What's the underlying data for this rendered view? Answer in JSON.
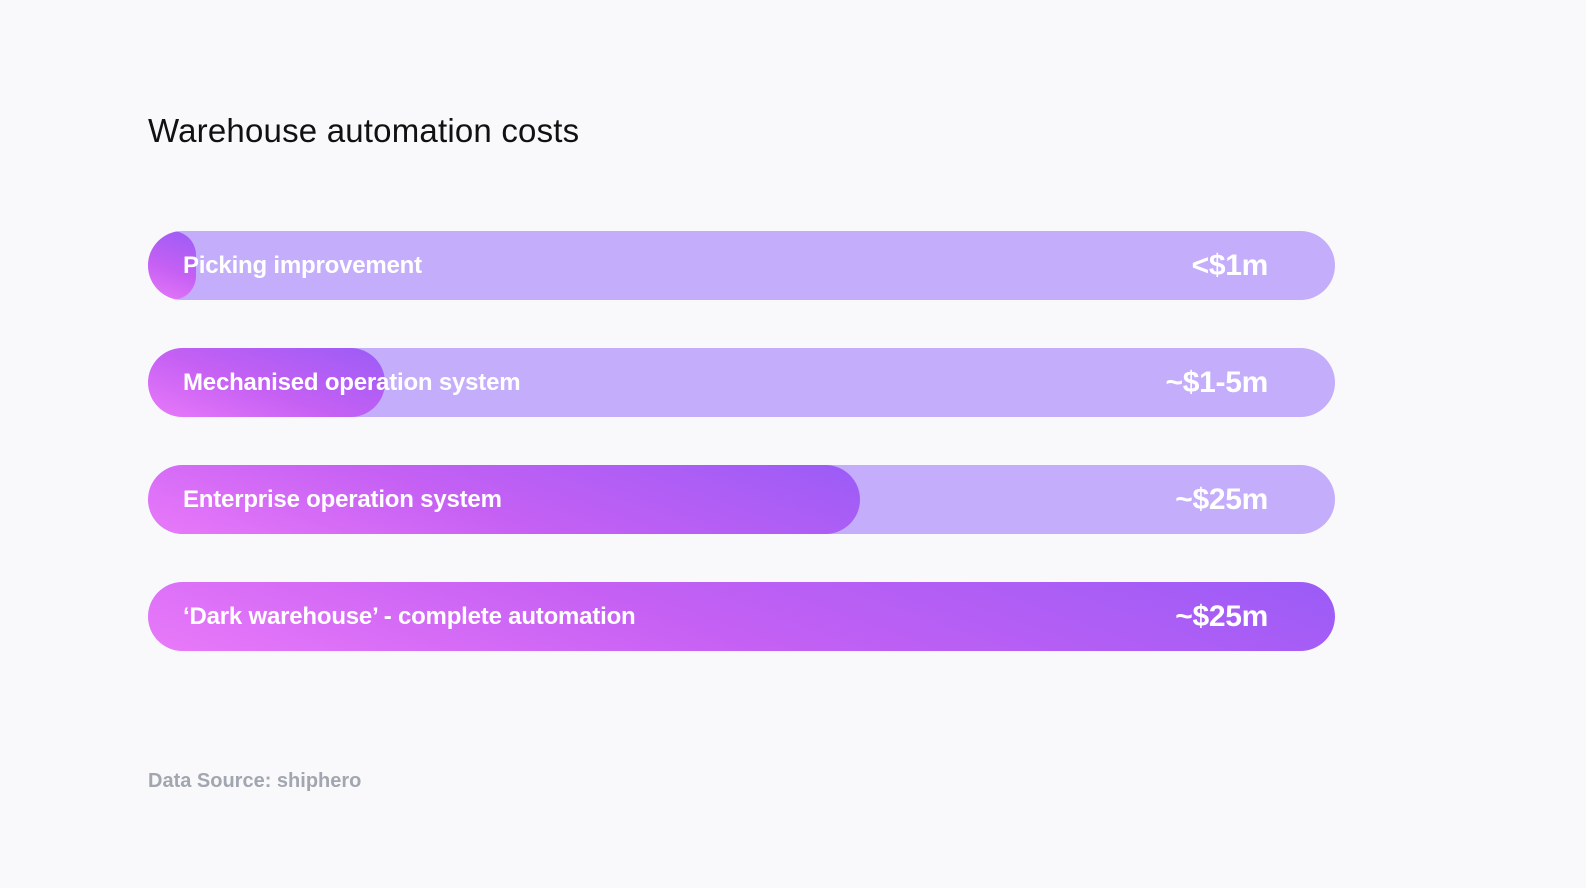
{
  "chart_data": {
    "type": "bar",
    "orientation": "horizontal",
    "title": "Warehouse automation costs",
    "categories": [
      "Picking improvement",
      "Mechanised operation system",
      "Enterprise operation system",
      "‘Dark warehouse’ - complete automation"
    ],
    "value_labels": [
      "<$1m",
      "~$1-5m",
      "~$25m",
      "~$25m"
    ],
    "fill_fraction": [
      0.04,
      0.2,
      0.6,
      1.0
    ],
    "source": "Data Source: shiphero",
    "colors": {
      "track": "#c4aefb",
      "fill_start": "#e879f9",
      "fill_end": "#9b5cf6",
      "background": "#f9f9fb",
      "source_text": "#a2a6b0"
    }
  }
}
